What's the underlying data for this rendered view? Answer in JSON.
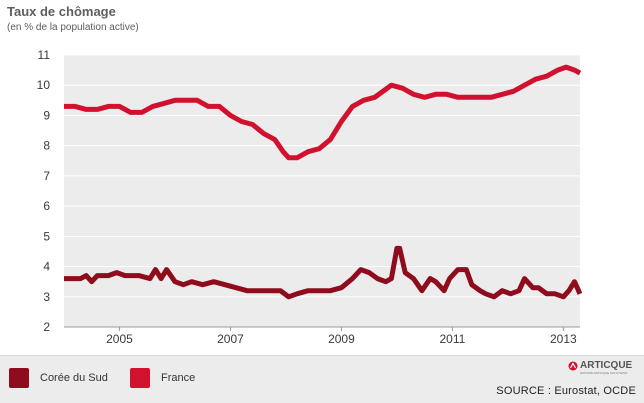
{
  "header": {
    "title": "Taux de chômage",
    "subtitle": "(en % de la population active)"
  },
  "colors": {
    "korea": "#8f0c1c",
    "france": "#d0122e",
    "plot_bg": "#ececec",
    "gridline": "#ffffff",
    "axis_text": "#3a3a3a"
  },
  "chart_data": {
    "type": "line",
    "title": "Taux de chômage",
    "subtitle": "(en % de la population active)",
    "xlabel": "",
    "ylabel": "",
    "xlim": [
      2004.0,
      2013.3
    ],
    "ylim": [
      2,
      11
    ],
    "x_ticks": [
      2005,
      2007,
      2009,
      2011,
      2013
    ],
    "x_tick_labels": [
      "2005",
      "2007",
      "2009",
      "2011",
      "2013"
    ],
    "y_ticks": [
      2,
      3,
      4,
      5,
      6,
      7,
      8,
      9,
      10,
      11
    ],
    "y_tick_labels": [
      "2",
      "3",
      "4",
      "5",
      "6",
      "7",
      "8",
      "9",
      "10",
      "11"
    ],
    "grid": true,
    "legend_position": "bottom",
    "series": [
      {
        "name": "France",
        "color": "#d0122e",
        "x": [
          2004.0,
          2004.2,
          2004.4,
          2004.6,
          2004.8,
          2005.0,
          2005.2,
          2005.4,
          2005.6,
          2005.8,
          2006.0,
          2006.2,
          2006.4,
          2006.6,
          2006.8,
          2007.0,
          2007.2,
          2007.4,
          2007.6,
          2007.8,
          2007.95,
          2008.05,
          2008.2,
          2008.4,
          2008.6,
          2008.8,
          2009.0,
          2009.2,
          2009.4,
          2009.6,
          2009.75,
          2009.9,
          2010.1,
          2010.3,
          2010.5,
          2010.7,
          2010.9,
          2011.1,
          2011.3,
          2011.5,
          2011.7,
          2011.9,
          2012.1,
          2012.3,
          2012.5,
          2012.7,
          2012.9,
          2013.05,
          2013.2,
          2013.3
        ],
        "values": [
          9.3,
          9.3,
          9.2,
          9.2,
          9.3,
          9.3,
          9.1,
          9.1,
          9.3,
          9.4,
          9.5,
          9.5,
          9.5,
          9.3,
          9.3,
          9.0,
          8.8,
          8.7,
          8.4,
          8.2,
          7.8,
          7.6,
          7.6,
          7.8,
          7.9,
          8.2,
          8.8,
          9.3,
          9.5,
          9.6,
          9.8,
          10.0,
          9.9,
          9.7,
          9.6,
          9.7,
          9.7,
          9.6,
          9.6,
          9.6,
          9.6,
          9.7,
          9.8,
          10.0,
          10.2,
          10.3,
          10.5,
          10.6,
          10.5,
          10.4
        ]
      },
      {
        "name": "Corée du Sud",
        "color": "#8f0c1c",
        "x": [
          2004.0,
          2004.15,
          2004.3,
          2004.4,
          2004.5,
          2004.6,
          2004.8,
          2004.95,
          2005.1,
          2005.2,
          2005.35,
          2005.55,
          2005.65,
          2005.75,
          2005.85,
          2006.0,
          2006.15,
          2006.3,
          2006.5,
          2006.7,
          2006.9,
          2007.1,
          2007.3,
          2007.5,
          2007.7,
          2007.9,
          2008.05,
          2008.2,
          2008.4,
          2008.6,
          2008.8,
          2009.0,
          2009.2,
          2009.35,
          2009.5,
          2009.65,
          2009.8,
          2009.9,
          2010.0,
          2010.05,
          2010.15,
          2010.3,
          2010.45,
          2010.6,
          2010.7,
          2010.85,
          2010.95,
          2011.1,
          2011.25,
          2011.35,
          2011.5,
          2011.6,
          2011.75,
          2011.9,
          2012.05,
          2012.2,
          2012.3,
          2012.45,
          2012.55,
          2012.7,
          2012.85,
          2013.0,
          2013.1,
          2013.2,
          2013.3
        ],
        "values": [
          3.6,
          3.6,
          3.6,
          3.7,
          3.5,
          3.7,
          3.7,
          3.8,
          3.7,
          3.7,
          3.7,
          3.6,
          3.9,
          3.6,
          3.9,
          3.5,
          3.4,
          3.5,
          3.4,
          3.5,
          3.4,
          3.3,
          3.2,
          3.2,
          3.2,
          3.2,
          3.0,
          3.1,
          3.2,
          3.2,
          3.2,
          3.3,
          3.6,
          3.9,
          3.8,
          3.6,
          3.5,
          3.6,
          4.6,
          4.6,
          3.8,
          3.6,
          3.2,
          3.6,
          3.5,
          3.2,
          3.6,
          3.9,
          3.9,
          3.4,
          3.2,
          3.1,
          3.0,
          3.2,
          3.1,
          3.2,
          3.6,
          3.3,
          3.3,
          3.1,
          3.1,
          3.0,
          3.2,
          3.5,
          3.1
        ]
      }
    ]
  },
  "legend": {
    "items": [
      {
        "label": "Corée du Sud",
        "color": "#8f0c1c"
      },
      {
        "label": "France",
        "color": "#d0122e"
      }
    ]
  },
  "footer": {
    "source": "SOURCE : Eurostat, OCDE",
    "logo_text": "ARTICQUE",
    "logo_subtext": "GROUPE ARTICQUE SOLUTIONS"
  }
}
